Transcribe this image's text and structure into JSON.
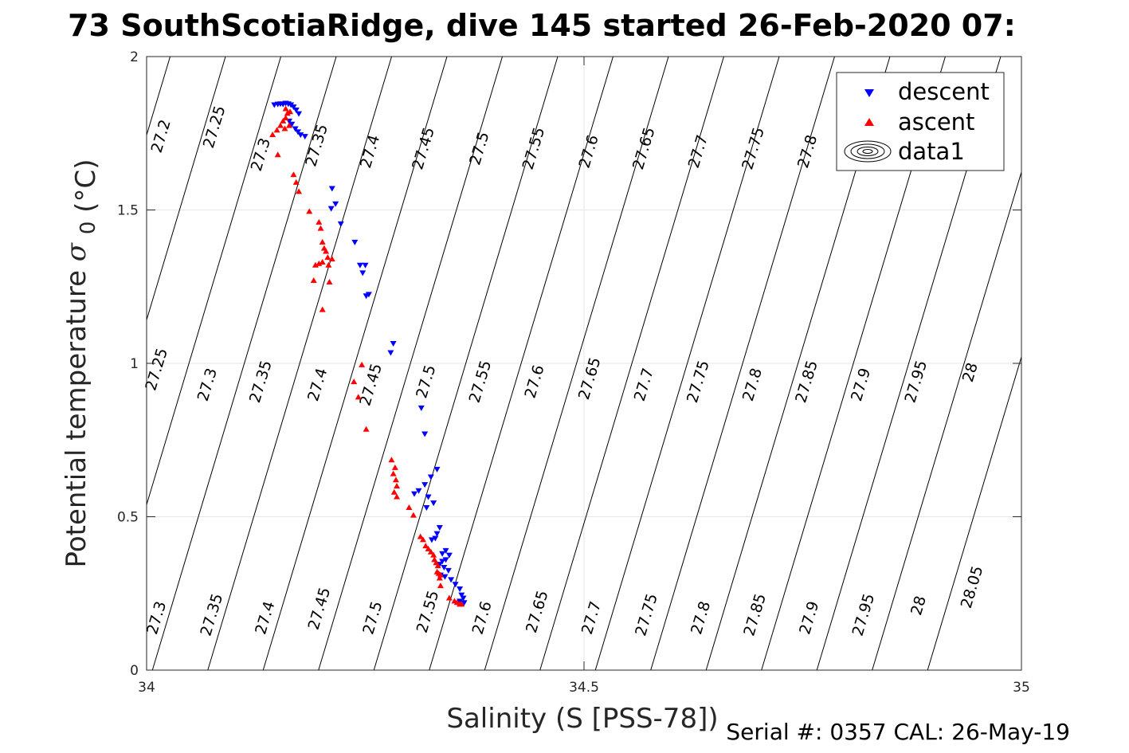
{
  "chart_data": {
    "type": "scatter",
    "title": "73 SouthScotiaRidge, dive 145 started 26-Feb-2020 07:",
    "xlabel": "Salinity (S [PSS-78])",
    "ylabel": "Potential temperature",
    "ylabel_symbol": "σ",
    "ylabel_subscript": "0",
    "ylabel_unit": "(°C)",
    "xlim": [
      34,
      35
    ],
    "ylim": [
      0,
      2
    ],
    "xticks": [
      34,
      34.5,
      35
    ],
    "xtick_labels": [
      "34",
      "34.5",
      "35"
    ],
    "yticks": [
      0,
      0.5,
      1,
      1.5,
      2
    ],
    "ytick_labels": [
      "0",
      "0.5",
      "1",
      "1.5",
      "2"
    ],
    "grid": true,
    "legend_position": "top-right",
    "legend": [
      {
        "label": "descent",
        "marker": "triangle-down",
        "color": "#0000ff"
      },
      {
        "label": "ascent",
        "marker": "triangle-up",
        "color": "#ff0000"
      },
      {
        "label": "data1",
        "marker": "contour",
        "color": "#000000"
      }
    ],
    "density_contours": {
      "levels": [
        27.2,
        27.25,
        27.3,
        27.35,
        27.4,
        27.45,
        27.5,
        27.55,
        27.6,
        27.65,
        27.7,
        27.75,
        27.8,
        27.85,
        27.9,
        27.95,
        28,
        28.05
      ],
      "labels": [
        {
          "text": "27.2",
          "x": 34.017,
          "y": 1.74
        },
        {
          "text": "27.25",
          "x": 34.078,
          "y": 1.77
        },
        {
          "text": "27.3",
          "x": 34.131,
          "y": 1.68
        },
        {
          "text": "27.35",
          "x": 34.195,
          "y": 1.71
        },
        {
          "text": "27.4",
          "x": 34.256,
          "y": 1.69
        },
        {
          "text": "27.45",
          "x": 34.317,
          "y": 1.7
        },
        {
          "text": "27.5",
          "x": 34.381,
          "y": 1.7
        },
        {
          "text": "27.55",
          "x": 34.443,
          "y": 1.7
        },
        {
          "text": "27.6",
          "x": 34.506,
          "y": 1.69
        },
        {
          "text": "27.65",
          "x": 34.569,
          "y": 1.7
        },
        {
          "text": "27.7",
          "x": 34.631,
          "y": 1.69
        },
        {
          "text": "27.75",
          "x": 34.694,
          "y": 1.7
        },
        {
          "text": "27.8",
          "x": 34.756,
          "y": 1.69
        },
        {
          "text": "27.25",
          "x": 34.012,
          "y": 0.98
        },
        {
          "text": "27.3",
          "x": 34.07,
          "y": 0.93
        },
        {
          "text": "27.35",
          "x": 34.131,
          "y": 0.94
        },
        {
          "text": "27.4",
          "x": 34.196,
          "y": 0.93
        },
        {
          "text": "27.45",
          "x": 34.257,
          "y": 0.93
        },
        {
          "text": "27.5",
          "x": 34.32,
          "y": 0.94
        },
        {
          "text": "27.55",
          "x": 34.382,
          "y": 0.94
        },
        {
          "text": "27.6",
          "x": 34.444,
          "y": 0.94
        },
        {
          "text": "27.65",
          "x": 34.507,
          "y": 0.95
        },
        {
          "text": "27.7",
          "x": 34.569,
          "y": 0.93
        },
        {
          "text": "27.75",
          "x": 34.631,
          "y": 0.94
        },
        {
          "text": "27.8",
          "x": 34.693,
          "y": 0.93
        },
        {
          "text": "27.85",
          "x": 34.755,
          "y": 0.94
        },
        {
          "text": "27.9",
          "x": 34.817,
          "y": 0.93
        },
        {
          "text": "27.95",
          "x": 34.88,
          "y": 0.94
        },
        {
          "text": "28",
          "x": 34.942,
          "y": 0.97
        },
        {
          "text": "27.3",
          "x": 34.012,
          "y": 0.17
        },
        {
          "text": "27.35",
          "x": 34.075,
          "y": 0.18
        },
        {
          "text": "27.4",
          "x": 34.136,
          "y": 0.17
        },
        {
          "text": "27.45",
          "x": 34.198,
          "y": 0.2
        },
        {
          "text": "27.5",
          "x": 34.259,
          "y": 0.17
        },
        {
          "text": "27.55",
          "x": 34.322,
          "y": 0.19
        },
        {
          "text": "27.6",
          "x": 34.384,
          "y": 0.17
        },
        {
          "text": "27.65",
          "x": 34.447,
          "y": 0.19
        },
        {
          "text": "27.7",
          "x": 34.509,
          "y": 0.17
        },
        {
          "text": "27.75",
          "x": 34.572,
          "y": 0.18
        },
        {
          "text": "27.8",
          "x": 34.634,
          "y": 0.17
        },
        {
          "text": "27.85",
          "x": 34.696,
          "y": 0.18
        },
        {
          "text": "27.9",
          "x": 34.758,
          "y": 0.17
        },
        {
          "text": "27.95",
          "x": 34.82,
          "y": 0.18
        },
        {
          "text": "28",
          "x": 34.883,
          "y": 0.21
        },
        {
          "text": "28.05",
          "x": 34.944,
          "y": 0.27
        }
      ]
    },
    "series": [
      {
        "name": "descent",
        "marker": "triangle-down",
        "color": "#0000ff",
        "points": [
          [
            34.146,
            1.843
          ],
          [
            34.15,
            1.845
          ],
          [
            34.153,
            1.846
          ],
          [
            34.156,
            1.845
          ],
          [
            34.159,
            1.848
          ],
          [
            34.162,
            1.846
          ],
          [
            34.165,
            1.843
          ],
          [
            34.168,
            1.836
          ],
          [
            34.171,
            1.826
          ],
          [
            34.174,
            1.814
          ],
          [
            34.163,
            1.79
          ],
          [
            34.166,
            1.78
          ],
          [
            34.17,
            1.765
          ],
          [
            34.173,
            1.755
          ],
          [
            34.176,
            1.745
          ],
          [
            34.181,
            1.74
          ],
          [
            34.212,
            1.57
          ],
          [
            34.216,
            1.52
          ],
          [
            34.211,
            1.505
          ],
          [
            34.222,
            1.455
          ],
          [
            34.238,
            1.395
          ],
          [
            34.244,
            1.32
          ],
          [
            34.25,
            1.32
          ],
          [
            34.247,
            1.295
          ],
          [
            34.254,
            1.225
          ],
          [
            34.251,
            1.22
          ],
          [
            34.282,
            1.065
          ],
          [
            34.279,
            1.035
          ],
          [
            34.314,
            0.855
          ],
          [
            34.318,
            0.77
          ],
          [
            34.332,
            0.655
          ],
          [
            34.325,
            0.63
          ],
          [
            34.318,
            0.605
          ],
          [
            34.311,
            0.585
          ],
          [
            34.306,
            0.575
          ],
          [
            34.322,
            0.565
          ],
          [
            34.328,
            0.545
          ],
          [
            34.32,
            0.53
          ],
          [
            34.335,
            0.465
          ],
          [
            34.332,
            0.445
          ],
          [
            34.33,
            0.43
          ],
          [
            34.326,
            0.425
          ],
          [
            34.342,
            0.39
          ],
          [
            34.338,
            0.38
          ],
          [
            34.346,
            0.375
          ],
          [
            34.342,
            0.36
          ],
          [
            34.338,
            0.355
          ],
          [
            34.335,
            0.345
          ],
          [
            34.34,
            0.335
          ],
          [
            34.345,
            0.325
          ],
          [
            34.336,
            0.31
          ],
          [
            34.341,
            0.305
          ],
          [
            34.348,
            0.295
          ],
          [
            34.353,
            0.28
          ],
          [
            34.358,
            0.265
          ],
          [
            34.36,
            0.245
          ],
          [
            34.362,
            0.235
          ],
          [
            34.358,
            0.225
          ],
          [
            34.363,
            0.22
          ]
        ]
      },
      {
        "name": "ascent",
        "marker": "triangle-up",
        "color": "#ff0000",
        "points": [
          [
            34.144,
            1.745
          ],
          [
            34.149,
            1.76
          ],
          [
            34.153,
            1.775
          ],
          [
            34.156,
            1.79
          ],
          [
            34.159,
            1.8
          ],
          [
            34.161,
            1.815
          ],
          [
            34.164,
            1.82
          ],
          [
            34.159,
            1.83
          ],
          [
            34.163,
            1.775
          ],
          [
            34.158,
            1.765
          ],
          [
            34.15,
            1.68
          ],
          [
            34.168,
            1.615
          ],
          [
            34.171,
            1.59
          ],
          [
            34.174,
            1.56
          ],
          [
            34.186,
            1.495
          ],
          [
            34.197,
            1.46
          ],
          [
            34.199,
            1.44
          ],
          [
            34.201,
            1.395
          ],
          [
            34.203,
            1.375
          ],
          [
            34.205,
            1.365
          ],
          [
            34.207,
            1.345
          ],
          [
            34.201,
            1.33
          ],
          [
            34.197,
            1.325
          ],
          [
            34.193,
            1.32
          ],
          [
            34.208,
            1.32
          ],
          [
            34.212,
            1.34
          ],
          [
            34.191,
            1.27
          ],
          [
            34.209,
            1.265
          ],
          [
            34.201,
            1.175
          ],
          [
            34.246,
            0.995
          ],
          [
            34.237,
            0.94
          ],
          [
            34.242,
            0.89
          ],
          [
            34.251,
            0.785
          ],
          [
            34.28,
            0.685
          ],
          [
            34.284,
            0.66
          ],
          [
            34.282,
            0.64
          ],
          [
            34.285,
            0.62
          ],
          [
            34.286,
            0.6
          ],
          [
            34.283,
            0.58
          ],
          [
            34.286,
            0.565
          ],
          [
            34.3,
            0.53
          ],
          [
            34.305,
            0.505
          ],
          [
            34.313,
            0.435
          ],
          [
            34.316,
            0.425
          ],
          [
            34.319,
            0.405
          ],
          [
            34.322,
            0.395
          ],
          [
            34.325,
            0.385
          ],
          [
            34.328,
            0.375
          ],
          [
            34.329,
            0.36
          ],
          [
            34.331,
            0.35
          ],
          [
            34.333,
            0.34
          ],
          [
            34.332,
            0.32
          ],
          [
            34.334,
            0.315
          ],
          [
            34.336,
            0.31
          ],
          [
            34.335,
            0.3
          ],
          [
            34.336,
            0.275
          ],
          [
            34.346,
            0.235
          ],
          [
            34.352,
            0.225
          ],
          [
            34.355,
            0.22
          ],
          [
            34.358,
            0.215
          ],
          [
            34.36,
            0.215
          ]
        ]
      }
    ]
  },
  "footer": {
    "serial_text": "Serial #: 0357  CAL: 26-May-19"
  }
}
